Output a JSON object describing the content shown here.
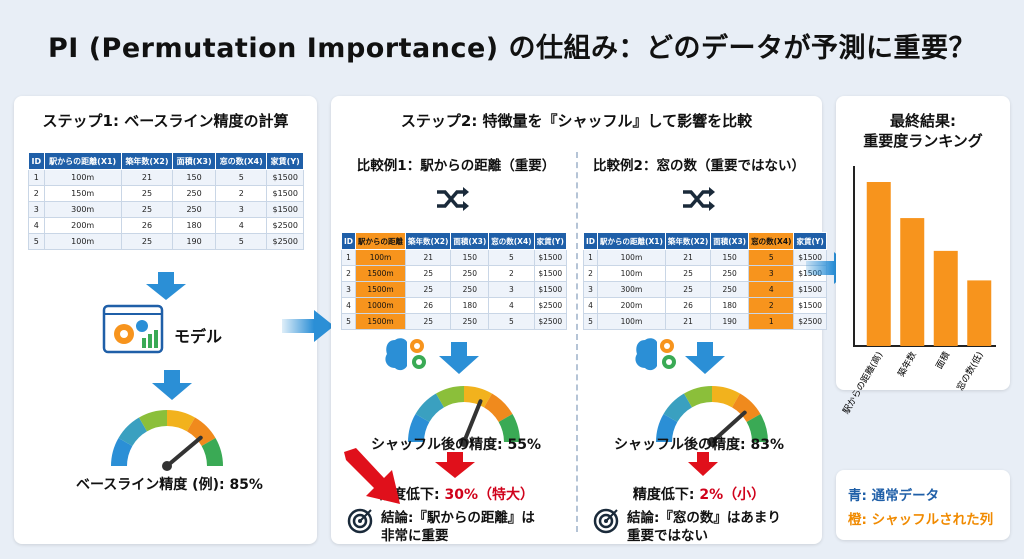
{
  "title": "PI (Permutation Importance) の仕組み：どのデータが予測に重要？",
  "step1": {
    "title": "ステップ1: ベースライン精度の計算",
    "model_label": "モデル",
    "baseline_label": "ベースライン精度 (例): 85%",
    "table": {
      "headers": [
        "ID",
        "駅からの距離(X1)",
        "築年数(X2)",
        "面積(X3)",
        "窓の数(X4)",
        "家賃(Y)"
      ],
      "rows": [
        [
          "1",
          "100m",
          "21",
          "150",
          "5",
          "$1500"
        ],
        [
          "2",
          "150m",
          "25",
          "250",
          "2",
          "$1500"
        ],
        [
          "3",
          "300m",
          "25",
          "250",
          "3",
          "$1500"
        ],
        [
          "4",
          "200m",
          "26",
          "180",
          "4",
          "$2500"
        ],
        [
          "5",
          "100m",
          "25",
          "190",
          "5",
          "$2500"
        ]
      ]
    }
  },
  "step2": {
    "title": "ステップ2: 特徴量を『シャッフル』して影響を比較",
    "ex1": {
      "title": "比較例1：駅からの距離（重要）",
      "headers": [
        "ID",
        "駅からの距離",
        "築年数(X2)",
        "面積(X3)",
        "窓の数(X4)",
        "家賃(Y)"
      ],
      "rows": [
        [
          "1",
          "100m",
          "21",
          "150",
          "5",
          "$1500"
        ],
        [
          "2",
          "1500m",
          "25",
          "250",
          "2",
          "$1500"
        ],
        [
          "3",
          "1500m",
          "25",
          "250",
          "3",
          "$1500"
        ],
        [
          "4",
          "1000m",
          "26",
          "180",
          "4",
          "$2500"
        ],
        [
          "5",
          "1500m",
          "25",
          "250",
          "5",
          "$2500"
        ]
      ],
      "after_label": "シャッフル後の精度: 55%",
      "drop_prefix": "精度低下: ",
      "drop_value": "30%（特大）",
      "conclusion_1": "結論:『駅からの距離』は",
      "conclusion_2": "非常に重要"
    },
    "ex2": {
      "title": "比較例2：窓の数（重要ではない）",
      "headers": [
        "ID",
        "駅からの距離(X1)",
        "築年数(X2)",
        "面積(X3)",
        "窓の数(X4)",
        "家賃(Y)"
      ],
      "rows": [
        [
          "1",
          "100m",
          "21",
          "150",
          "5",
          "$1500"
        ],
        [
          "2",
          "100m",
          "25",
          "250",
          "3",
          "$1500"
        ],
        [
          "3",
          "300m",
          "25",
          "250",
          "4",
          "$1500"
        ],
        [
          "4",
          "200m",
          "26",
          "180",
          "2",
          "$1500"
        ],
        [
          "5",
          "100m",
          "21",
          "190",
          "1",
          "$2500"
        ]
      ],
      "after_label": "シャッフル後の精度: 83%",
      "drop_prefix": "精度低下: ",
      "drop_value": "2%（小）",
      "conclusion_1": "結論:『窓の数』はあまり",
      "conclusion_2": "重要ではない"
    }
  },
  "final": {
    "title_1": "最終結果:",
    "title_2": "重要度ランキング",
    "chart_data": {
      "type": "bar",
      "categories": [
        "駅からの距離(高)",
        "築年数",
        "面積",
        "窓の数(低)"
      ],
      "values": [
        100,
        78,
        58,
        40
      ]
    },
    "bar_color": "#f7941d"
  },
  "legend": {
    "blue": "青: 通常データ",
    "orange": "橙: シャッフルされた列"
  },
  "colors": {
    "blue": "#1f5fa8",
    "orange": "#f7941d",
    "arrow": "#2b8fd6",
    "red": "#e0101b"
  }
}
